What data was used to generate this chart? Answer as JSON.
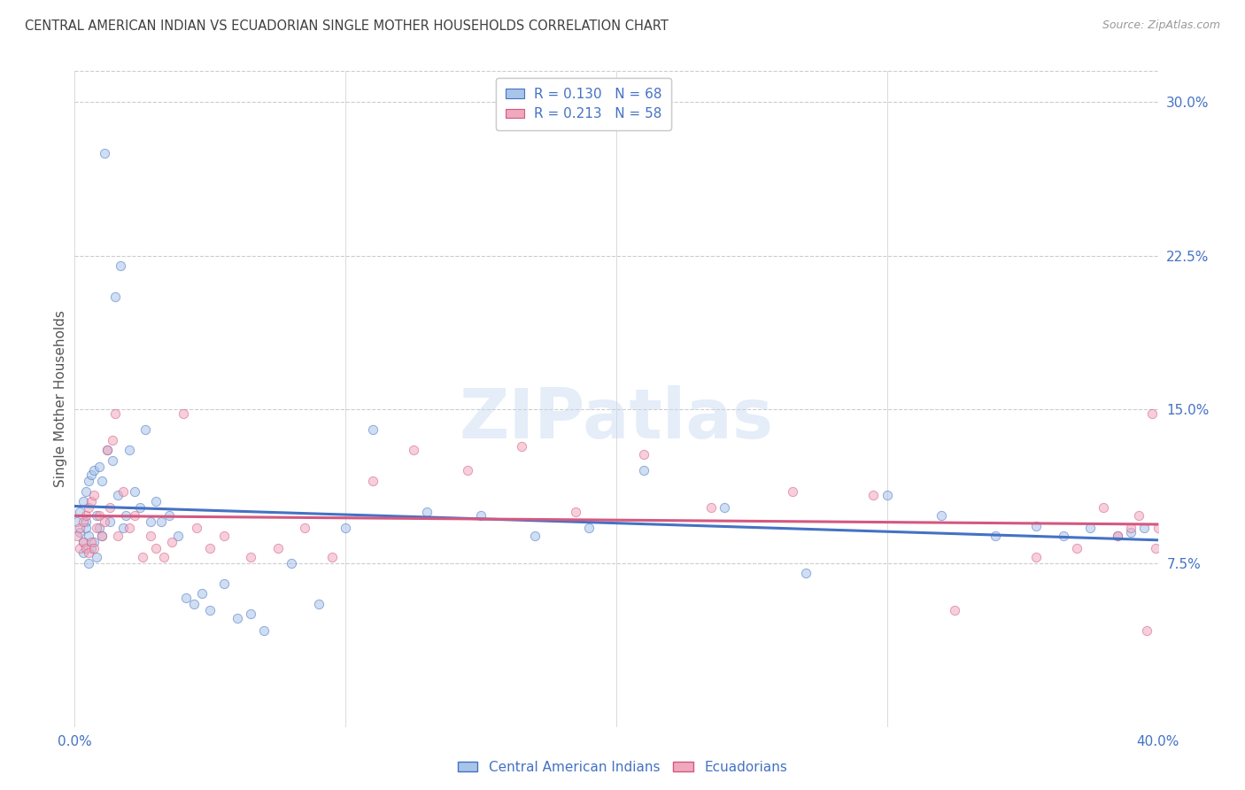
{
  "title": "CENTRAL AMERICAN INDIAN VS ECUADORIAN SINGLE MOTHER HOUSEHOLDS CORRELATION CHART",
  "source": "Source: ZipAtlas.com",
  "ylabel": "Single Mother Households",
  "watermark": "ZIPatlas",
  "xlim": [
    0.0,
    0.4
  ],
  "ylim": [
    -0.005,
    0.315
  ],
  "xtick_positions": [
    0.0,
    0.1,
    0.2,
    0.3,
    0.4
  ],
  "xtick_labels": [
    "0.0%",
    "",
    "",
    "",
    "40.0%"
  ],
  "ytick_values": [
    0.075,
    0.15,
    0.225,
    0.3
  ],
  "ytick_labels": [
    "7.5%",
    "15.0%",
    "22.5%",
    "30.0%"
  ],
  "legend_r1": "R = 0.130",
  "legend_n1": "N = 68",
  "legend_r2": "R = 0.213",
  "legend_n2": "N = 58",
  "color_blue": "#A8C4E8",
  "color_pink": "#F0A8BC",
  "line_color_blue": "#4472C4",
  "line_color_pink": "#D45880",
  "title_color": "#404040",
  "source_color": "#999999",
  "tick_color": "#4472C4",
  "background": "#FFFFFF",
  "grid_color": "#CCCCCC",
  "scatter_alpha": 0.55,
  "scatter_size": 55,
  "blue_x": [
    0.001,
    0.002,
    0.002,
    0.003,
    0.003,
    0.003,
    0.004,
    0.004,
    0.004,
    0.005,
    0.005,
    0.005,
    0.006,
    0.006,
    0.007,
    0.007,
    0.008,
    0.008,
    0.009,
    0.009,
    0.01,
    0.01,
    0.011,
    0.012,
    0.013,
    0.014,
    0.015,
    0.016,
    0.017,
    0.018,
    0.019,
    0.02,
    0.022,
    0.024,
    0.026,
    0.028,
    0.03,
    0.032,
    0.035,
    0.038,
    0.041,
    0.044,
    0.047,
    0.05,
    0.055,
    0.06,
    0.065,
    0.07,
    0.08,
    0.09,
    0.1,
    0.11,
    0.13,
    0.15,
    0.17,
    0.19,
    0.21,
    0.24,
    0.27,
    0.3,
    0.32,
    0.34,
    0.355,
    0.365,
    0.375,
    0.385,
    0.39,
    0.395
  ],
  "blue_y": [
    0.095,
    0.1,
    0.09,
    0.105,
    0.085,
    0.08,
    0.11,
    0.095,
    0.092,
    0.115,
    0.088,
    0.075,
    0.118,
    0.082,
    0.12,
    0.085,
    0.098,
    0.078,
    0.122,
    0.092,
    0.115,
    0.088,
    0.275,
    0.13,
    0.095,
    0.125,
    0.205,
    0.108,
    0.22,
    0.092,
    0.098,
    0.13,
    0.11,
    0.102,
    0.14,
    0.095,
    0.105,
    0.095,
    0.098,
    0.088,
    0.058,
    0.055,
    0.06,
    0.052,
    0.065,
    0.048,
    0.05,
    0.042,
    0.075,
    0.055,
    0.092,
    0.14,
    0.1,
    0.098,
    0.088,
    0.092,
    0.12,
    0.102,
    0.07,
    0.108,
    0.098,
    0.088,
    0.093,
    0.088,
    0.092,
    0.088,
    0.09,
    0.092
  ],
  "pink_x": [
    0.001,
    0.002,
    0.002,
    0.003,
    0.003,
    0.004,
    0.004,
    0.005,
    0.005,
    0.006,
    0.006,
    0.007,
    0.007,
    0.008,
    0.009,
    0.01,
    0.011,
    0.012,
    0.013,
    0.014,
    0.015,
    0.016,
    0.018,
    0.02,
    0.022,
    0.025,
    0.028,
    0.03,
    0.033,
    0.036,
    0.04,
    0.045,
    0.05,
    0.055,
    0.065,
    0.075,
    0.085,
    0.095,
    0.11,
    0.125,
    0.145,
    0.165,
    0.185,
    0.21,
    0.235,
    0.265,
    0.295,
    0.325,
    0.355,
    0.37,
    0.38,
    0.385,
    0.39,
    0.393,
    0.396,
    0.398,
    0.399,
    0.4
  ],
  "pink_y": [
    0.088,
    0.092,
    0.082,
    0.095,
    0.085,
    0.098,
    0.082,
    0.102,
    0.08,
    0.105,
    0.085,
    0.108,
    0.082,
    0.092,
    0.098,
    0.088,
    0.095,
    0.13,
    0.102,
    0.135,
    0.148,
    0.088,
    0.11,
    0.092,
    0.098,
    0.078,
    0.088,
    0.082,
    0.078,
    0.085,
    0.148,
    0.092,
    0.082,
    0.088,
    0.078,
    0.082,
    0.092,
    0.078,
    0.115,
    0.13,
    0.12,
    0.132,
    0.1,
    0.128,
    0.102,
    0.11,
    0.108,
    0.052,
    0.078,
    0.082,
    0.102,
    0.088,
    0.092,
    0.098,
    0.042,
    0.148,
    0.082,
    0.092
  ]
}
